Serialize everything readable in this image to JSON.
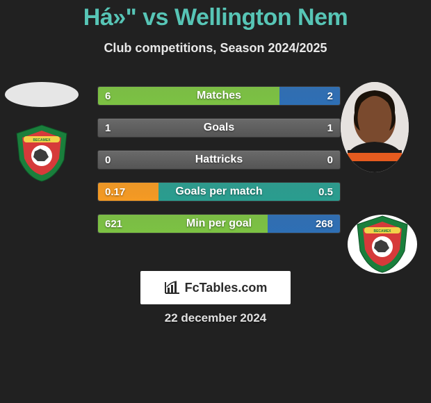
{
  "title": "Há»\" vs Wellington Nem",
  "subtitle": "Club competitions, Season 2024/2025",
  "date": "22 december 2024",
  "brand": "FcTables.com",
  "palette": {
    "background": "#212121",
    "title_color": "#57c5b6",
    "text_color": "#ffffff",
    "bar_base": "#5f5f5f",
    "fill_green": "#7cc243",
    "fill_blue": "#2e6fb5",
    "fill_orange": "#f59a23",
    "fill_teal": "#2a9d8f"
  },
  "badge": {
    "name": "Becamex Binh Duong FC",
    "outer": "#1a7f3c",
    "inner": "#d63a3a",
    "ball": "#ffffff"
  },
  "player_right": {
    "skin": "#7a4a2e",
    "hair": "#1a120a",
    "jersey_top": "#1a1a1a",
    "jersey_stripe": "#e55b1f"
  },
  "typography": {
    "title_fontsize": 34,
    "subtitle_fontsize": 18,
    "bar_label_fontsize": 16,
    "bar_value_fontsize": 15,
    "date_fontsize": 17,
    "font_family": "Arial"
  },
  "bars": [
    {
      "label": "Matches",
      "left_value": "6",
      "right_value": "2",
      "left_pct": 75,
      "right_pct": 25,
      "left_color": "#7cc243",
      "right_color": "#2e6fb5"
    },
    {
      "label": "Goals",
      "left_value": "1",
      "right_value": "1",
      "left_pct": 0,
      "right_pct": 0,
      "left_color": "#7cc243",
      "right_color": "#2e6fb5"
    },
    {
      "label": "Hattricks",
      "left_value": "0",
      "right_value": "0",
      "left_pct": 0,
      "right_pct": 0,
      "left_color": "#7cc243",
      "right_color": "#2e6fb5"
    },
    {
      "label": "Goals per match",
      "left_value": "0.17",
      "right_value": "0.5",
      "left_pct": 25,
      "right_pct": 75,
      "left_color": "#f59a23",
      "right_color": "#2a9d8f"
    },
    {
      "label": "Min per goal",
      "left_value": "621",
      "right_value": "268",
      "left_pct": 70,
      "right_pct": 30,
      "left_color": "#7cc243",
      "right_color": "#2e6fb5"
    }
  ]
}
